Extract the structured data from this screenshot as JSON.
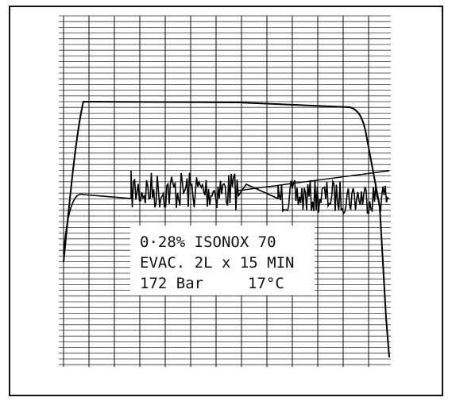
{
  "label": {
    "lines": [
      "0·28% ISONOX 70",
      "EVAC. 2L x 15 MIN",
      "172 Bar",
      "17°C"
    ]
  }
}
